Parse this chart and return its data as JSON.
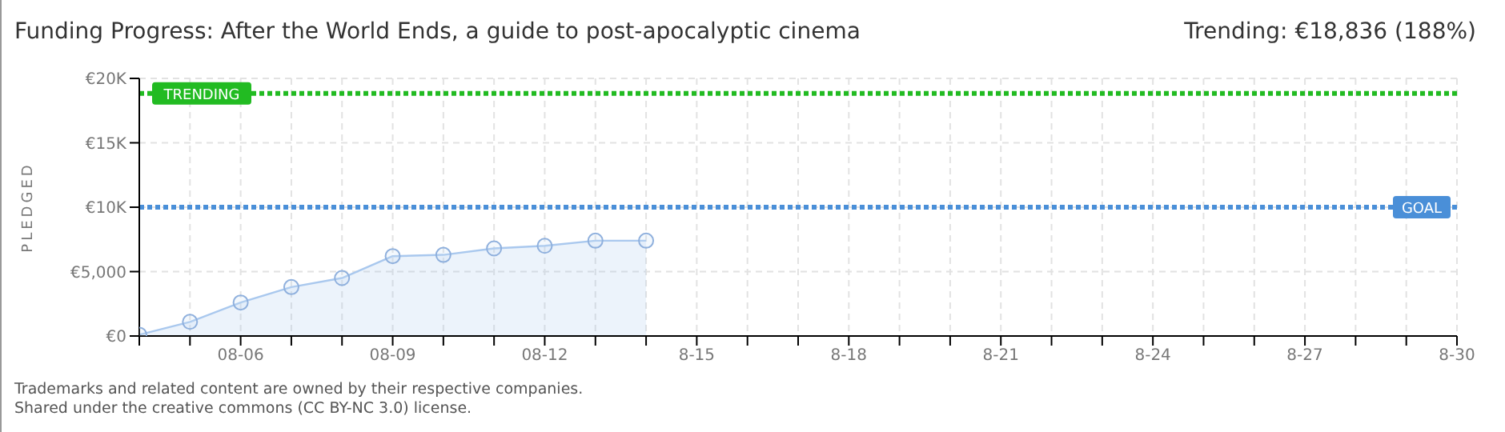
{
  "chart_data": {
    "type": "area",
    "title": "Funding Progress: After the World Ends, a guide to post-apocalyptic cinema",
    "subtitle": "Trending:  €18,836 (188%)",
    "ylabel": "PLEDGED",
    "annotations": [
      "Trademarks and related content are owned by their respective companies.",
      "Shared under the creative commons (CC BY-NC 3.0) license."
    ],
    "x": [
      "--08-04",
      "--08-05",
      "--08-06",
      "--08-07",
      "--08-08",
      "--08-09",
      "--08-10",
      "--08-11",
      "--08-12",
      "--08-13",
      "--08-14"
    ],
    "series": [
      {
        "color": "#a9c8ee",
        "values": [
          100,
          1100,
          2600,
          3800,
          4500,
          6200,
          6300,
          6800,
          7000,
          7400,
          7400
        ]
      }
    ],
    "xlim": [
      "--08-04",
      "--08-30"
    ],
    "xticks": [
      {
        "value": "--08-04",
        "label": null
      },
      {
        "value": "--08-05",
        "label": null
      },
      {
        "value": "--08-06",
        "label": "08-06"
      },
      {
        "value": "--08-07",
        "label": null
      },
      {
        "value": "--08-08",
        "label": null
      },
      {
        "value": "--08-09",
        "label": "08-09"
      },
      {
        "value": "--08-10",
        "label": null
      },
      {
        "value": "--08-11",
        "label": null
      },
      {
        "value": "--08-12",
        "label": "08-12"
      },
      {
        "value": "--08-13",
        "label": null
      },
      {
        "value": "--08-14",
        "label": null
      },
      {
        "value": "--08-15",
        "label": "8-15"
      },
      {
        "value": "--08-16",
        "label": null
      },
      {
        "value": "--08-17",
        "label": null
      },
      {
        "value": "--08-18",
        "label": "8-18"
      },
      {
        "value": "--08-19",
        "label": null
      },
      {
        "value": "--08-20",
        "label": null
      },
      {
        "value": "--08-21",
        "label": "8-21"
      },
      {
        "value": "--08-22",
        "label": null
      },
      {
        "value": "--08-23",
        "label": null
      },
      {
        "value": "--08-24",
        "label": "8-24"
      },
      {
        "value": "--08-25",
        "label": null
      },
      {
        "value": "--08-26",
        "label": null
      },
      {
        "value": "--08-27",
        "label": "8-27"
      },
      {
        "value": "--08-28",
        "label": null
      },
      {
        "value": "--08-29",
        "label": null
      },
      {
        "value": "--08-30",
        "label": "8-30"
      }
    ],
    "ylim": [
      0,
      20000
    ],
    "yticks": [
      {
        "value": 0,
        "label": "€0"
      },
      {
        "value": 5000,
        "label": "€5,000"
      },
      {
        "value": 10000,
        "label": "€10K"
      },
      {
        "value": 15000,
        "label": "€15K"
      },
      {
        "value": 20000,
        "label": "€20K"
      }
    ],
    "ref_lines": [
      {
        "axis": "y",
        "value": 18836,
        "label": "TRENDING",
        "color": "#22bb22",
        "line_style": "dotted"
      },
      {
        "axis": "y",
        "value": 10000,
        "label": "GOAL",
        "color": "#4a8fd8",
        "line_style": "dotted"
      }
    ],
    "grid": true,
    "marker": "circle",
    "legend": false
  }
}
